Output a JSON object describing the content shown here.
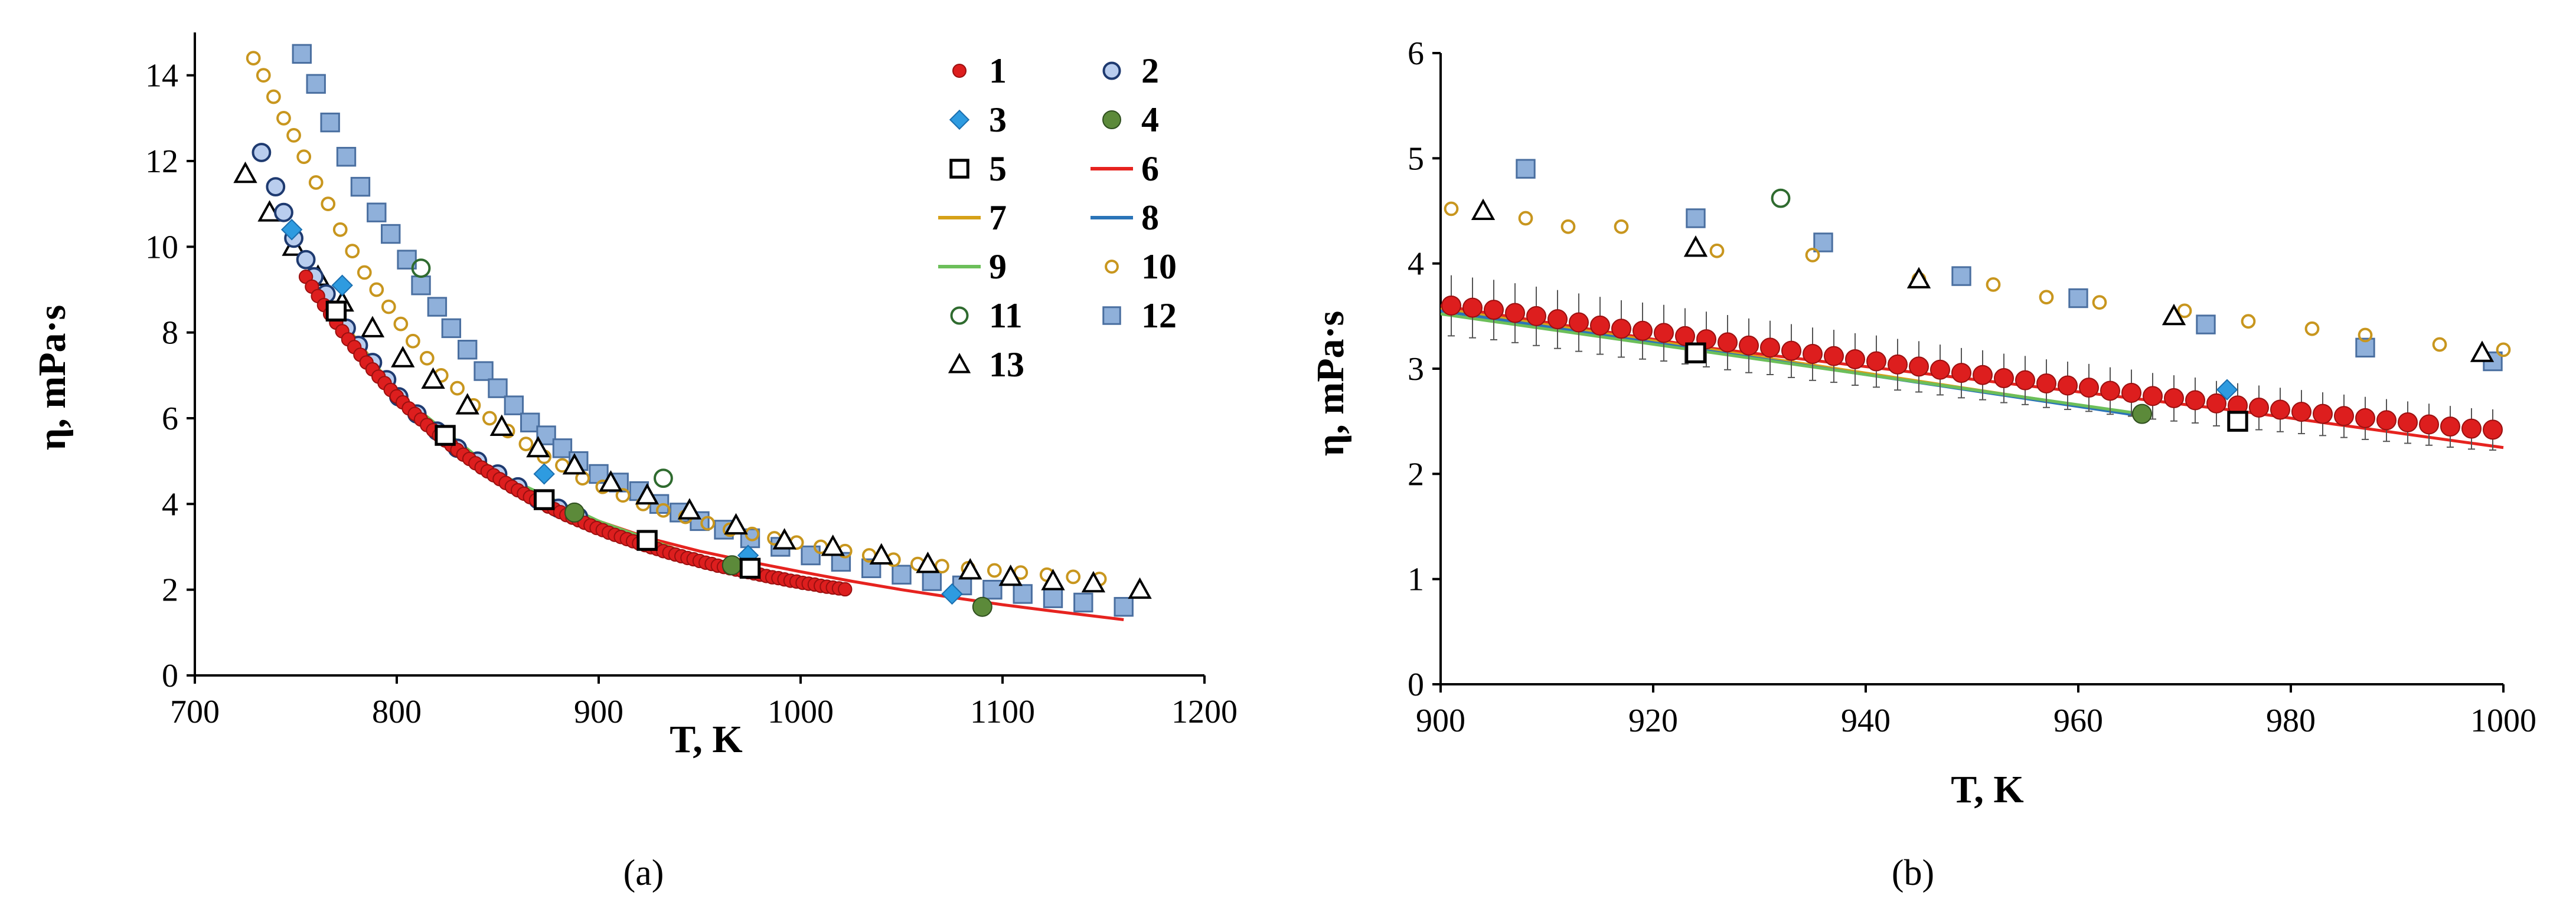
{
  "chart_data": [
    {
      "type": "scatter",
      "panel_label": "(a)",
      "xlabel": "T, K",
      "ylabel": "η, mPa·s",
      "xlim": [
        700,
        1200
      ],
      "ylim": [
        0,
        15
      ],
      "xticks": [
        700,
        800,
        900,
        1000,
        1100,
        1200
      ],
      "yticks": [
        0,
        2,
        4,
        6,
        8,
        10,
        12,
        14
      ],
      "grid": false,
      "legend_position": "top-right",
      "series": [
        {
          "name": "1",
          "marker": "filled-circle-red",
          "color": "#dd1e1e",
          "x": [
            755,
            758,
            761,
            764,
            767,
            770,
            773,
            776,
            779,
            782,
            785,
            788,
            791,
            794,
            797,
            800,
            803,
            806,
            809,
            812,
            815,
            818,
            821,
            824,
            827,
            830,
            833,
            836,
            839,
            842,
            845,
            848,
            851,
            854,
            857,
            860,
            863,
            866,
            869,
            872,
            875,
            878,
            881,
            884,
            887,
            890,
            893,
            896,
            899,
            902,
            905,
            908,
            911,
            914,
            917,
            920,
            923,
            926,
            929,
            932,
            935,
            938,
            941,
            944,
            947,
            950,
            953,
            956,
            959,
            962,
            965,
            968,
            971,
            974,
            977,
            980,
            983,
            986,
            989,
            992,
            995,
            998,
            1001,
            1004,
            1007,
            1010,
            1013,
            1016,
            1019,
            1022
          ],
          "y": [
            9.3,
            9.07,
            8.85,
            8.64,
            8.43,
            8.23,
            8.03,
            7.84,
            7.66,
            7.48,
            7.3,
            7.14,
            6.97,
            6.82,
            6.66,
            6.51,
            6.37,
            6.23,
            6.1,
            5.97,
            5.84,
            5.72,
            5.6,
            5.48,
            5.37,
            5.26,
            5.15,
            5.05,
            4.95,
            4.85,
            4.76,
            4.67,
            4.58,
            4.49,
            4.4,
            4.32,
            4.24,
            4.16,
            4.09,
            4.02,
            3.94,
            3.88,
            3.81,
            3.74,
            3.68,
            3.62,
            3.56,
            3.5,
            3.44,
            3.39,
            3.33,
            3.28,
            3.23,
            3.18,
            3.13,
            3.08,
            3.04,
            2.99,
            2.95,
            2.9,
            2.86,
            2.82,
            2.78,
            2.74,
            2.71,
            2.67,
            2.63,
            2.6,
            2.56,
            2.53,
            2.5,
            2.47,
            2.44,
            2.41,
            2.38,
            2.35,
            2.32,
            2.29,
            2.27,
            2.24,
            2.21,
            2.19,
            2.16,
            2.14,
            2.12,
            2.09,
            2.07,
            2.05,
            2.03,
            2.01
          ]
        },
        {
          "name": "2",
          "marker": "open-circle-blue",
          "color": "#5b8bd0",
          "x": [
            733,
            740,
            744,
            749,
            755,
            759,
            765,
            770,
            775,
            781,
            788,
            795,
            801,
            810,
            820,
            830,
            840,
            850,
            860,
            870,
            880,
            890
          ],
          "y": [
            12.2,
            11.4,
            10.8,
            10.2,
            9.7,
            9.3,
            8.9,
            8.5,
            8.1,
            7.7,
            7.3,
            6.9,
            6.5,
            6.1,
            5.7,
            5.3,
            5.0,
            4.7,
            4.4,
            4.1,
            3.9,
            3.7
          ]
        },
        {
          "name": "3",
          "marker": "diamond-blue",
          "color": "#2e9be0",
          "x": [
            748,
            773,
            873,
            974,
            1075
          ],
          "y": [
            10.4,
            9.1,
            4.7,
            2.8,
            1.9
          ]
        },
        {
          "name": "4",
          "marker": "filled-circle-green",
          "color": "#5c8a3a",
          "x": [
            888,
            966,
            1090
          ],
          "y": [
            3.8,
            2.57,
            1.6
          ]
        },
        {
          "name": "5",
          "marker": "open-square-black",
          "color": "#000000",
          "x": [
            770,
            824,
            873,
            924,
            975
          ],
          "y": [
            8.5,
            5.6,
            4.1,
            3.15,
            2.5
          ]
        },
        {
          "name": "6",
          "marker": "line-red",
          "color": "#e6231f",
          "x": [
            755,
            780,
            800,
            820,
            850,
            875,
            900,
            925,
            950,
            975,
            1000,
            1025,
            1050,
            1075,
            1100,
            1125,
            1160
          ],
          "y": [
            9.3,
            7.6,
            6.5,
            5.7,
            4.7,
            4.1,
            3.6,
            3.2,
            2.9,
            2.65,
            2.42,
            2.2,
            2.0,
            1.82,
            1.65,
            1.5,
            1.3
          ]
        },
        {
          "name": "7",
          "marker": "line-gold",
          "color": "#d6a118",
          "x": [
            755,
            800,
            850,
            900,
            950,
            966
          ],
          "y": [
            9.4,
            6.6,
            4.7,
            3.6,
            2.75,
            2.55
          ]
        },
        {
          "name": "8",
          "marker": "line-blue",
          "color": "#2a74b8",
          "x": [
            755,
            800,
            850,
            900,
            950,
            966
          ],
          "y": [
            9.3,
            6.55,
            4.7,
            3.58,
            2.72,
            2.56
          ]
        },
        {
          "name": "9",
          "marker": "line-green",
          "color": "#6cbf5a",
          "x": [
            755,
            800,
            850,
            900,
            950,
            966
          ],
          "y": [
            9.35,
            6.6,
            4.72,
            3.6,
            2.74,
            2.57
          ]
        },
        {
          "name": "10",
          "marker": "open-circle-gold",
          "color": "#c8961e",
          "x": [
            729,
            734,
            739,
            744,
            749,
            754,
            760,
            766,
            772,
            778,
            784,
            790,
            796,
            802,
            808,
            815,
            822,
            830,
            838,
            846,
            855,
            864,
            873,
            882,
            892,
            902,
            912,
            922,
            932,
            943,
            954,
            965,
            976,
            987,
            998,
            1010,
            1022,
            1034,
            1046,
            1058,
            1070,
            1083,
            1096,
            1109,
            1122,
            1135,
            1148
          ],
          "y": [
            14.4,
            14.0,
            13.5,
            13.0,
            12.6,
            12.1,
            11.5,
            11.0,
            10.4,
            9.9,
            9.4,
            9.0,
            8.6,
            8.2,
            7.8,
            7.4,
            7.0,
            6.7,
            6.3,
            6.0,
            5.7,
            5.4,
            5.1,
            4.9,
            4.6,
            4.4,
            4.2,
            4.0,
            3.85,
            3.7,
            3.55,
            3.4,
            3.3,
            3.2,
            3.1,
            3.0,
            2.9,
            2.8,
            2.7,
            2.6,
            2.55,
            2.5,
            2.45,
            2.4,
            2.35,
            2.3,
            2.25
          ]
        },
        {
          "name": "11",
          "marker": "open-circle-green",
          "color": "#2f6b2f",
          "x": [
            812,
            932
          ],
          "y": [
            9.5,
            4.6
          ]
        },
        {
          "name": "12",
          "marker": "filled-square-lightblue",
          "color": "#8fb0da",
          "x": [
            753,
            760,
            767,
            775,
            782,
            790,
            797,
            805,
            812,
            820,
            827,
            835,
            843,
            850,
            858,
            866,
            874,
            882,
            890,
            900,
            910,
            920,
            930,
            940,
            950,
            962,
            975,
            990,
            1005,
            1020,
            1035,
            1050,
            1065,
            1080,
            1095,
            1110,
            1125,
            1140,
            1160
          ],
          "y": [
            14.5,
            13.8,
            12.9,
            12.1,
            11.4,
            10.8,
            10.3,
            9.7,
            9.1,
            8.6,
            8.1,
            7.6,
            7.1,
            6.7,
            6.3,
            5.9,
            5.6,
            5.3,
            5.0,
            4.7,
            4.5,
            4.3,
            4.0,
            3.8,
            3.6,
            3.4,
            3.2,
            3.0,
            2.8,
            2.65,
            2.5,
            2.35,
            2.2,
            2.1,
            2.0,
            1.9,
            1.8,
            1.7,
            1.6
          ]
        },
        {
          "name": "13",
          "marker": "open-triangle-black",
          "color": "#000000",
          "x": [
            725,
            737,
            749,
            761,
            773,
            788,
            803,
            818,
            835,
            852,
            870,
            888,
            906,
            924,
            945,
            968,
            992,
            1016,
            1040,
            1063,
            1084,
            1104,
            1125,
            1145,
            1168
          ],
          "y": [
            11.7,
            10.8,
            10.0,
            9.3,
            8.7,
            8.1,
            7.4,
            6.9,
            6.3,
            5.8,
            5.3,
            4.9,
            4.5,
            4.2,
            3.85,
            3.5,
            3.15,
            3.0,
            2.8,
            2.6,
            2.45,
            2.3,
            2.2,
            2.15,
            2.0
          ]
        }
      ]
    },
    {
      "type": "scatter",
      "panel_label": "(b)",
      "xlabel": "T, K",
      "ylabel": "η, mPa·s",
      "xlim": [
        900,
        1000
      ],
      "ylim": [
        0,
        6
      ],
      "xticks": [
        900,
        920,
        940,
        960,
        980,
        1000
      ],
      "yticks": [
        0,
        1,
        2,
        3,
        4,
        5,
        6
      ],
      "grid": false,
      "error_bars_on_series": "1",
      "error_bar_fraction": 0.08,
      "series": [
        {
          "name": "1",
          "marker": "filled-circle-red",
          "color": "#dd1e1e",
          "x": [
            901,
            903,
            905,
            907,
            909,
            911,
            913,
            915,
            917,
            919,
            921,
            923,
            925,
            927,
            929,
            931,
            933,
            935,
            937,
            939,
            941,
            943,
            945,
            947,
            949,
            951,
            953,
            955,
            957,
            959,
            961,
            963,
            965,
            967,
            969,
            971,
            973,
            975,
            977,
            979,
            981,
            983,
            985,
            987,
            989,
            991,
            993,
            995,
            997,
            999
          ],
          "y": [
            3.6,
            3.58,
            3.56,
            3.53,
            3.5,
            3.47,
            3.44,
            3.41,
            3.38,
            3.36,
            3.34,
            3.31,
            3.28,
            3.25,
            3.22,
            3.2,
            3.17,
            3.14,
            3.12,
            3.09,
            3.07,
            3.04,
            3.02,
            2.99,
            2.96,
            2.94,
            2.91,
            2.89,
            2.86,
            2.84,
            2.82,
            2.79,
            2.77,
            2.74,
            2.72,
            2.7,
            2.67,
            2.65,
            2.63,
            2.61,
            2.59,
            2.57,
            2.55,
            2.53,
            2.51,
            2.49,
            2.47,
            2.45,
            2.43,
            2.42
          ]
        },
        {
          "name": "3",
          "marker": "diamond-blue",
          "color": "#2e9be0",
          "x": [
            974
          ],
          "y": [
            2.8
          ]
        },
        {
          "name": "4",
          "marker": "filled-circle-green",
          "color": "#5c8a3a",
          "x": [
            966
          ],
          "y": [
            2.57
          ]
        },
        {
          "name": "5",
          "marker": "open-square-black",
          "color": "#000000",
          "x": [
            924,
            975
          ],
          "y": [
            3.15,
            2.5
          ]
        },
        {
          "name": "6",
          "marker": "line-red",
          "color": "#e6231f",
          "x": [
            900,
            925,
            950,
            975,
            1000
          ],
          "y": [
            3.6,
            3.2,
            2.9,
            2.6,
            2.25
          ]
        },
        {
          "name": "7",
          "marker": "line-gold",
          "color": "#d6a118",
          "x": [
            900,
            966
          ],
          "y": [
            3.57,
            2.56
          ]
        },
        {
          "name": "8",
          "marker": "line-blue",
          "color": "#2a74b8",
          "x": [
            900,
            966
          ],
          "y": [
            3.55,
            2.55
          ]
        },
        {
          "name": "9",
          "marker": "line-green",
          "color": "#6cbf5a",
          "x": [
            900,
            966
          ],
          "y": [
            3.52,
            2.57
          ]
        },
        {
          "name": "10",
          "marker": "open-circle-gold",
          "color": "#c8961e",
          "x": [
            901,
            908,
            912,
            917,
            926,
            935,
            945,
            952,
            957,
            962,
            970,
            976,
            982,
            987,
            994,
            1000
          ],
          "y": [
            4.52,
            4.43,
            4.35,
            4.35,
            4.12,
            4.08,
            3.85,
            3.8,
            3.68,
            3.63,
            3.55,
            3.45,
            3.38,
            3.32,
            3.23,
            3.18
          ]
        },
        {
          "name": "11",
          "marker": "open-circle-green",
          "color": "#2f6b2f",
          "x": [
            932
          ],
          "y": [
            4.62
          ]
        },
        {
          "name": "12",
          "marker": "filled-square-lightblue",
          "color": "#8fb0da",
          "x": [
            908,
            924,
            936,
            949,
            960,
            972,
            987,
            999
          ],
          "y": [
            4.9,
            4.43,
            4.2,
            3.88,
            3.67,
            3.42,
            3.2,
            3.07
          ]
        },
        {
          "name": "13",
          "marker": "open-triangle-black",
          "color": "#000000",
          "x": [
            904,
            924,
            945,
            969,
            998
          ],
          "y": [
            4.5,
            4.15,
            3.85,
            3.5,
            3.15
          ]
        }
      ]
    }
  ]
}
